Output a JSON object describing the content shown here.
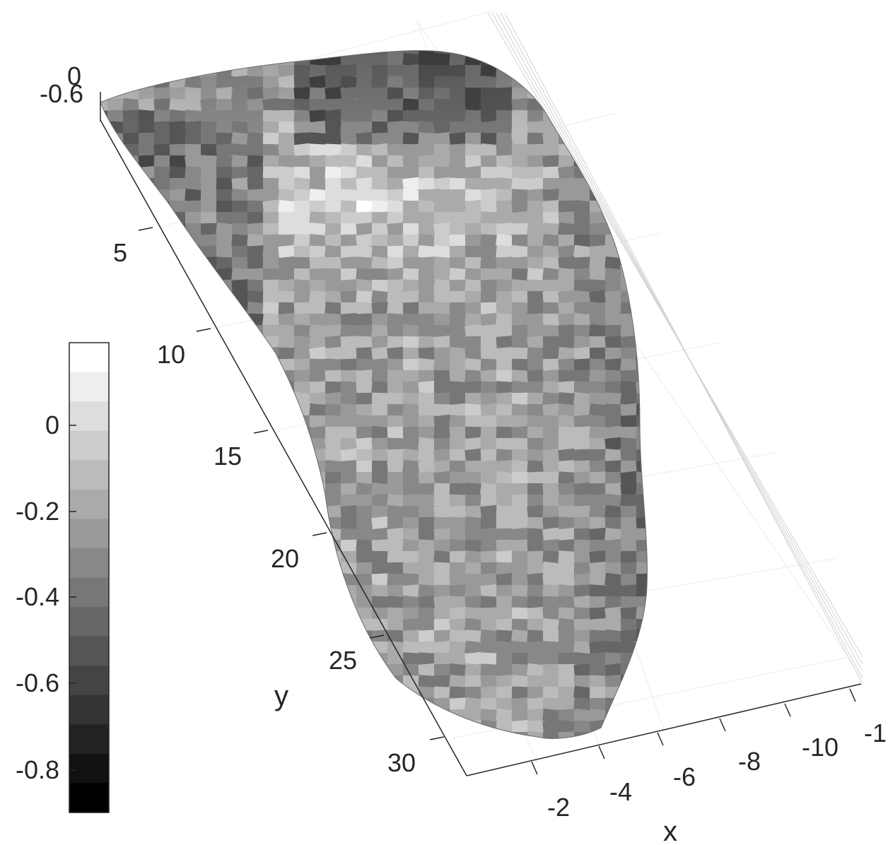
{
  "chart_data": {
    "type": "surface3d",
    "title": "",
    "xlabel": "x",
    "ylabel": "y",
    "zlabel": "",
    "x_ticks": [
      "-2",
      "-4",
      "-6",
      "-8",
      "-10",
      "-1"
    ],
    "y_ticks": [
      "5",
      "10",
      "15",
      "20",
      "25",
      "30"
    ],
    "z_ticks": [
      "0",
      "-0.6"
    ],
    "colorbar": {
      "colormap": "gray",
      "ticks": [
        "0",
        "-0.2",
        "-0.4",
        "-0.6",
        "-0.8"
      ],
      "range": [
        -0.9,
        0.2
      ],
      "levels": 16,
      "placement": "left"
    },
    "xlim": [
      -12,
      0
    ],
    "ylim": [
      0,
      32
    ],
    "surface_colors": [
      "#000000",
      "#ffffff"
    ]
  }
}
